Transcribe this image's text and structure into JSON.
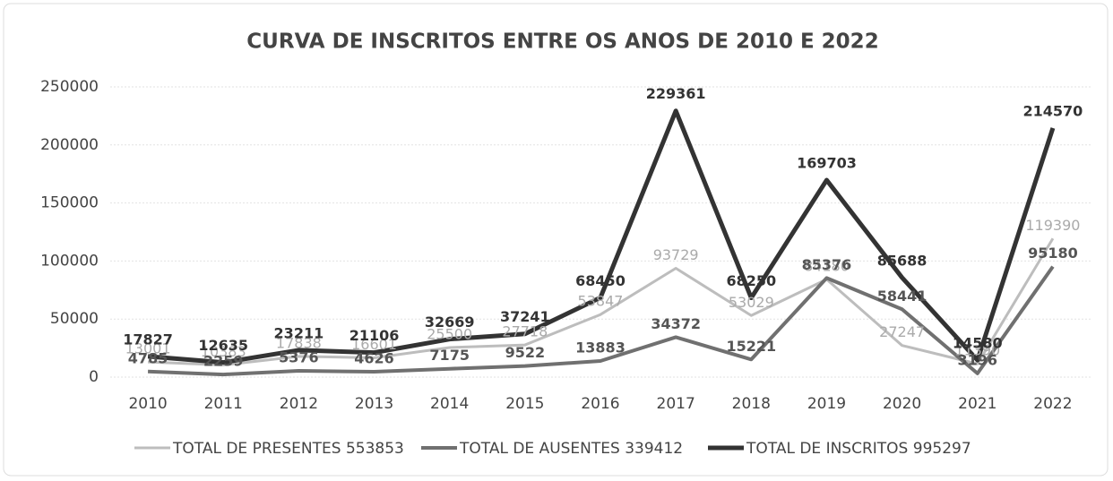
{
  "chart_data": {
    "type": "line",
    "title": "CURVA DE INSCRITOS ENTRE OS ANOS DE 2010 E 2022",
    "categories": [
      "2010",
      "2011",
      "2012",
      "2013",
      "2014",
      "2015",
      "2016",
      "2017",
      "2018",
      "2019",
      "2020",
      "2021",
      "2022"
    ],
    "series": [
      {
        "name": "TOTAL DE PRESENTES 553853",
        "color": "#bdbdbd",
        "values": [
          13001,
          10383,
          17838,
          16601,
          25500,
          27718,
          53847,
          93729,
          53029,
          84180,
          27247,
          11390,
          119390
        ]
      },
      {
        "name": "TOTAL DE AUSENTES 339412",
        "color": "#707070",
        "values": [
          4785,
          2259,
          5376,
          4626,
          7175,
          9522,
          13883,
          34372,
          15221,
          85376,
          58441,
          3196,
          95180
        ]
      },
      {
        "name": "TOTAL DE INSCRITOS 995297",
        "color": "#333333",
        "values": [
          17827,
          12635,
          23211,
          21106,
          32669,
          37241,
          68450,
          229361,
          68250,
          169703,
          85688,
          14580,
          214570
        ]
      }
    ],
    "ylim": [
      0,
      250000
    ],
    "yticks": [
      0,
      50000,
      100000,
      150000,
      200000,
      250000
    ],
    "grid": true,
    "legend": "bottom"
  }
}
